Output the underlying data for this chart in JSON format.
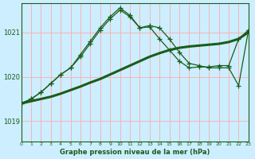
{
  "bg_color": "#cceeff",
  "grid_color": "#ffaaaa",
  "line_color_dark": "#1a5c1a",
  "title": "Graphe pression niveau de la mer (hPa)",
  "ylabel_ticks": [
    1019,
    1020,
    1021
  ],
  "xlim": [
    0,
    23
  ],
  "ylim": [
    1018.55,
    1021.65
  ],
  "hours": [
    0,
    1,
    2,
    3,
    4,
    5,
    6,
    7,
    8,
    9,
    10,
    11,
    12,
    13,
    14,
    15,
    16,
    17,
    18,
    19,
    20,
    21,
    22,
    23
  ],
  "series_thick": [
    1019.4,
    1019.45,
    1019.5,
    1019.55,
    1019.62,
    1019.7,
    1019.78,
    1019.87,
    1019.95,
    1020.05,
    1020.15,
    1020.25,
    1020.35,
    1020.45,
    1020.53,
    1020.6,
    1020.65,
    1020.68,
    1020.7,
    1020.72,
    1020.74,
    1020.78,
    1020.85,
    1021.0
  ],
  "series_zigzag": [
    1019.4,
    1019.5,
    1019.65,
    1019.85,
    1020.05,
    1020.2,
    1020.45,
    1020.75,
    1021.05,
    1021.3,
    1021.5,
    1021.35,
    1021.1,
    1021.15,
    1021.1,
    1020.85,
    1020.55,
    1020.3,
    1020.25,
    1020.2,
    1020.2,
    1020.2,
    1019.8,
    1021.05
  ],
  "series_smooth": [
    1019.4,
    1019.5,
    1019.65,
    1019.85,
    1020.05,
    1020.2,
    1020.5,
    1020.8,
    1021.1,
    1021.35,
    1021.55,
    1021.38,
    1021.1,
    1021.12,
    1020.85,
    1020.6,
    1020.35,
    1020.2,
    1020.22,
    1020.22,
    1020.25,
    1020.25,
    1020.85,
    1021.05
  ]
}
